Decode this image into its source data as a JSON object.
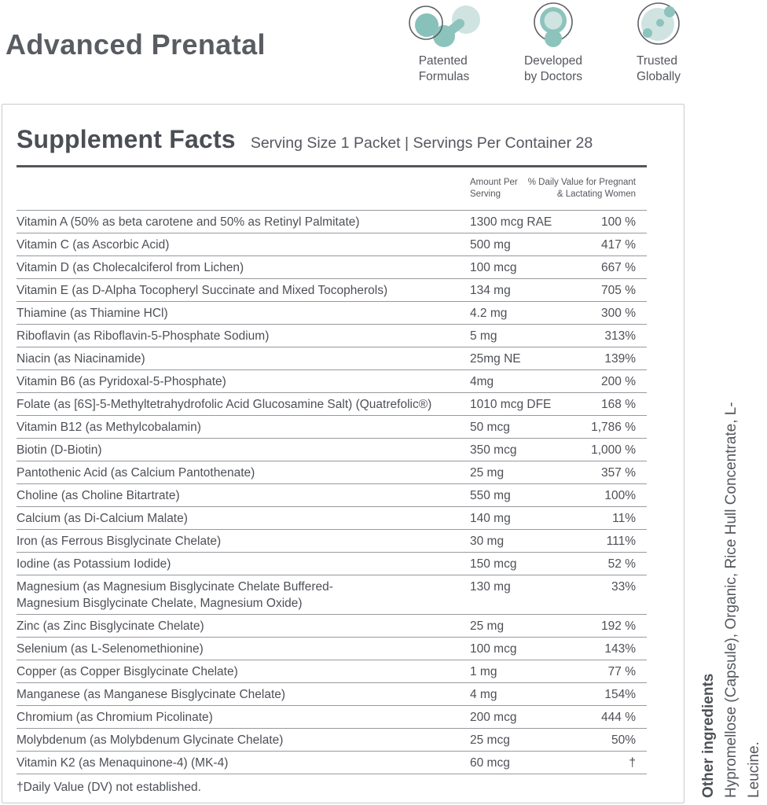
{
  "header": {
    "title": "Advanced Prenatal",
    "badges": [
      {
        "icon": "molecule-icon",
        "line1": "Patented",
        "line2": "Formulas"
      },
      {
        "icon": "doctor-icon",
        "line1": "Developed",
        "line2": "by Doctors"
      },
      {
        "icon": "globe-icon",
        "line1": "Trusted",
        "line2": "Globally"
      }
    ]
  },
  "panel": {
    "title": "Supplement Facts",
    "serving_info": "Serving Size 1 Packet | Servings Per Container 28",
    "columns": {
      "amount_line1": "Amount Per",
      "amount_line2": "Serving",
      "dv_line1": "% Daily Value for Pregnant",
      "dv_line2": "& Lactating Women"
    },
    "rows": [
      {
        "name": "Vitamin A (50% as beta carotene and 50% as Retinyl Palmitate)",
        "amount": "1300 mcg RAE",
        "dv": "100 %"
      },
      {
        "name": "Vitamin C (as Ascorbic Acid)",
        "amount": "500 mg",
        "dv": "417 %"
      },
      {
        "name": "Vitamin D (as Cholecalciferol from Lichen)",
        "amount": "100 mcg",
        "dv": "667 %"
      },
      {
        "name": "Vitamin E (as D-Alpha Tocopheryl Succinate and Mixed Tocopherols)",
        "amount": "134 mg",
        "dv": "705 %"
      },
      {
        "name": "Thiamine (as Thiamine HCl)",
        "amount": "4.2 mg",
        "dv": "300 %"
      },
      {
        "name": "Riboflavin (as Riboflavin-5-Phosphate Sodium)",
        "amount": "5 mg",
        "dv": "313%"
      },
      {
        "name": "Niacin (as Niacinamide)",
        "amount": "25mg NE",
        "dv": "139%"
      },
      {
        "name": "Vitamin B6 (as Pyridoxal-5-Phosphate)",
        "amount": "4mg",
        "dv": "200 %"
      },
      {
        "name": "Folate (as [6S]-5-Methyltetrahydrofolic Acid Glucosamine Salt) (Quatrefolic®)",
        "amount": "1010 mcg DFE",
        "dv": "168 %"
      },
      {
        "name": "Vitamin B12 (as Methylcobalamin)",
        "amount": "50 mcg",
        "dv": "1,786 %"
      },
      {
        "name": "Biotin (D-Biotin)",
        "amount": "350 mcg",
        "dv": "1,000 %"
      },
      {
        "name": "Pantothenic Acid (as Calcium Pantothenate)",
        "amount": "25 mg",
        "dv": "357 %"
      },
      {
        "name": "Choline (as Choline Bitartrate)",
        "amount": "550 mg",
        "dv": "100%"
      },
      {
        "name": "Calcium (as Di-Calcium Malate)",
        "amount": "140 mg",
        "dv": "11%"
      },
      {
        "name": "Iron (as Ferrous Bisglycinate Chelate)",
        "amount": "30 mg",
        "dv": "111%"
      },
      {
        "name": "Iodine (as Potassium Iodide)",
        "amount": "150 mcg",
        "dv": "52 %"
      },
      {
        "name": "Magnesium (as Magnesium Bisglycinate Chelate Buffered-\nMagnesium Bisglycinate Chelate, Magnesium Oxide)",
        "amount": "130 mg",
        "dv": "33%"
      },
      {
        "name": "Zinc (as Zinc Bisglycinate Chelate)",
        "amount": "25 mg",
        "dv": "192 %"
      },
      {
        "name": "Selenium (as L-Selenomethionine)",
        "amount": "100 mcg",
        "dv": "143%"
      },
      {
        "name": "Copper (as Copper Bisglycinate Chelate)",
        "amount": "1 mg",
        "dv": "77 %"
      },
      {
        "name": "Manganese (as Manganese Bisglycinate Chelate)",
        "amount": "4 mg",
        "dv": "154%"
      },
      {
        "name": "Chromium (as Chromium Picolinate)",
        "amount": "200 mcg",
        "dv": "444 %"
      },
      {
        "name": "Molybdenum (as Molybdenum Glycinate Chelate)",
        "amount": "25 mcg",
        "dv": "50%"
      },
      {
        "name": "Vitamin K2 (as Menaquinone-4) (MK-4)",
        "amount": "60 mcg",
        "dv": "†"
      }
    ],
    "footnote": "†Daily Value (DV) not established."
  },
  "side_note": {
    "title": "Other ingredients",
    "text": "Hypromellose (Capsule), Organic, Rice Hull Concentrate, L-Leucine."
  },
  "colors": {
    "teal_medium": "#8cc3bd",
    "teal_light": "#cfe3e1",
    "outline_gray": "#5d6065",
    "text_dark": "#4d5056",
    "rule_dark": "#54575b"
  }
}
